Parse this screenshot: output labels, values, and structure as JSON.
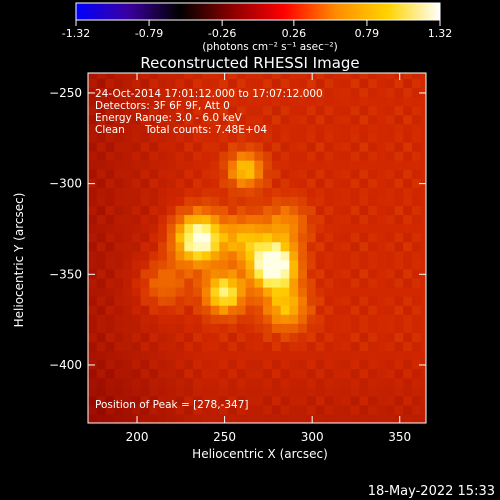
{
  "colorbar": {
    "ticks": [
      "-1.32",
      "-0.79",
      "-0.26",
      "0.26",
      "0.79",
      "1.32"
    ],
    "tick_values": [
      -1.32,
      -0.79,
      -0.26,
      0.26,
      0.79,
      1.32
    ],
    "range": [
      -1.32,
      1.32
    ],
    "unit_label": "(photons cm⁻² s⁻¹ asec⁻²)",
    "colormap": [
      "#0000ff",
      "#3a00a0",
      "#000000",
      "#8b0000",
      "#ff0000",
      "#ff8c00",
      "#ffd400",
      "#ffffff"
    ]
  },
  "chart_data": {
    "type": "heatmap",
    "title": "Reconstructed RHESSI Image",
    "xlabel": "Heliocentric X (arcsec)",
    "ylabel": "Heliocentric Y (arcsec)",
    "xlim": [
      172,
      365
    ],
    "ylim": [
      -432,
      -239
    ],
    "x_ticks": [
      200,
      250,
      300,
      350
    ],
    "y_ticks": [
      -250,
      -300,
      -350,
      -400
    ],
    "peak": [
      278,
      -347
    ],
    "sources": [
      {
        "x": 278,
        "y": -345,
        "amp": 1.32,
        "sigma": 9
      },
      {
        "x": 235,
        "y": -330,
        "amp": 1.12,
        "sigma": 10
      },
      {
        "x": 250,
        "y": -360,
        "amp": 0.9,
        "sigma": 8
      },
      {
        "x": 262,
        "y": -292,
        "amp": 0.7,
        "sigma": 7
      },
      {
        "x": 285,
        "y": -368,
        "amp": 0.62,
        "sigma": 9
      },
      {
        "x": 262,
        "y": -330,
        "amp": 0.55,
        "sigma": 9
      },
      {
        "x": 285,
        "y": -322,
        "amp": 0.42,
        "sigma": 9
      },
      {
        "x": 215,
        "y": -355,
        "amp": 0.38,
        "sigma": 10
      }
    ],
    "background": 0.45,
    "annotations": {
      "time": "24-Oct-2014 17:01:12.000 to 17:07:12.000",
      "detectors": "Detectors: 3F 6F 9F, Att 0",
      "energy": "Energy Range: 3.0 - 6.0 keV",
      "method": "Clean",
      "counts": "Total counts: 7.48E+04",
      "peak_text": "Position of Peak = [278,-347]"
    }
  },
  "footer_date": "18-May-2022 15:33"
}
